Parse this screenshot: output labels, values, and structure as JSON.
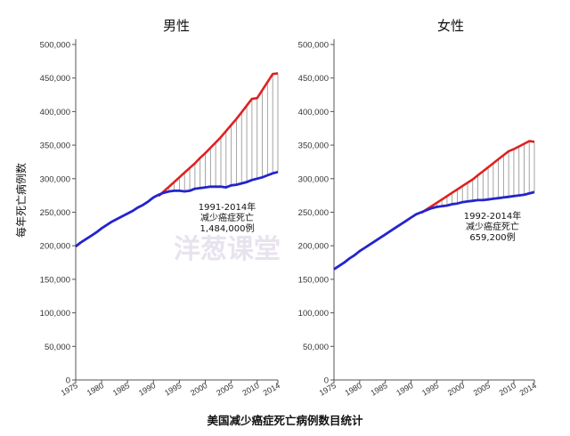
{
  "watermark": "洋葱课堂",
  "chart_data": {
    "type": "line",
    "ylabel": "每年死亡病例数",
    "caption": "美国减少癌症死亡病例数目统计",
    "colors": {
      "expected": "#e02020",
      "actual": "#2424cc",
      "gap_lines": "#9a9a9a",
      "axis": "#555555"
    },
    "panels": [
      {
        "title": "男性",
        "ylim": [
          0,
          500000
        ],
        "yticks": [
          "0",
          "50,000",
          "100,000",
          "150,000",
          "200,000",
          "250,000",
          "300,000",
          "350,000",
          "400,000",
          "450,000",
          "500,000"
        ],
        "ytick_values": [
          0,
          50000,
          100000,
          150000,
          200000,
          250000,
          300000,
          350000,
          400000,
          450000,
          500000
        ],
        "xlim": [
          1975,
          2014
        ],
        "xticks": [
          "1975",
          "1980",
          "1985",
          "1990",
          "1995",
          "2000",
          "2005",
          "2010",
          "2014"
        ],
        "xtick_values": [
          1975,
          1980,
          1985,
          1990,
          1995,
          2000,
          2005,
          2010,
          2014
        ],
        "annotation": [
          "1991-2014年",
          "减少癌症死亡",
          "1,484,000例"
        ],
        "series": [
          {
            "role": "expected",
            "x": [
              1991,
              1992,
              1993,
              1994,
              1995,
              1996,
              1997,
              1998,
              1999,
              2000,
              2001,
              2002,
              2003,
              2004,
              2005,
              2006,
              2007,
              2008,
              2009,
              2010,
              2011,
              2012,
              2013,
              2014
            ],
            "values": [
              274000,
              281000,
              288000,
              295000,
              302000,
              309000,
              316000,
              323000,
              331000,
              338000,
              346000,
              354000,
              362000,
              371000,
              380000,
              389000,
              399000,
              409000,
              419000,
              420000,
              432000,
              444000,
              456000,
              457000
            ]
          },
          {
            "role": "actual",
            "x": [
              1975,
              1976,
              1977,
              1978,
              1979,
              1980,
              1981,
              1982,
              1983,
              1984,
              1985,
              1986,
              1987,
              1988,
              1989,
              1990,
              1991,
              1992,
              1993,
              1994,
              1995,
              1996,
              1997,
              1998,
              1999,
              2000,
              2001,
              2002,
              2003,
              2004,
              2005,
              2006,
              2007,
              2008,
              2009,
              2010,
              2011,
              2012,
              2013,
              2014
            ],
            "values": [
              199000,
              205000,
              210000,
              215000,
              220000,
              226000,
              231000,
              236000,
              240000,
              244000,
              248000,
              252000,
              257000,
              261000,
              266000,
              272000,
              276000,
              279000,
              281000,
              282000,
              282000,
              281000,
              282000,
              285000,
              286000,
              287000,
              288000,
              288000,
              288000,
              287000,
              290000,
              291000,
              293000,
              295000,
              298000,
              300000,
              302000,
              305000,
              308000,
              310000
            ]
          }
        ]
      },
      {
        "title": "女性",
        "ylim": [
          0,
          500000
        ],
        "yticks": [
          "0",
          "50,000",
          "100,000",
          "150,000",
          "200,000",
          "250,000",
          "300,000",
          "350,000",
          "400,000",
          "450,000",
          "500,000"
        ],
        "ytick_values": [
          0,
          50000,
          100000,
          150000,
          200000,
          250000,
          300000,
          350000,
          400000,
          450000,
          500000
        ],
        "xlim": [
          1975,
          2014
        ],
        "xticks": [
          "1975",
          "1980",
          "1985",
          "1990",
          "1995",
          "2000",
          "2005",
          "2010",
          "2014"
        ],
        "xtick_values": [
          1975,
          1980,
          1985,
          1990,
          1995,
          2000,
          2005,
          2010,
          2014
        ],
        "annotation": [
          "1992-2014年",
          "减少癌症死亡",
          "659,200例"
        ],
        "series": [
          {
            "role": "expected",
            "x": [
              1992,
              1993,
              1994,
              1995,
              1996,
              1997,
              1998,
              1999,
              2000,
              2001,
              2002,
              2003,
              2004,
              2005,
              2006,
              2007,
              2008,
              2009,
              2010,
              2011,
              2012,
              2013,
              2014
            ],
            "values": [
              249000,
              254000,
              259000,
              264000,
              269000,
              274000,
              279000,
              284000,
              289000,
              294000,
              299000,
              305000,
              311000,
              317000,
              323000,
              329000,
              335000,
              341000,
              344000,
              348000,
              352000,
              356000,
              355000
            ]
          },
          {
            "role": "actual",
            "x": [
              1975,
              1976,
              1977,
              1978,
              1979,
              1980,
              1981,
              1982,
              1983,
              1984,
              1985,
              1986,
              1987,
              1988,
              1989,
              1990,
              1991,
              1992,
              1993,
              1994,
              1995,
              1996,
              1997,
              1998,
              1999,
              2000,
              2001,
              2002,
              2003,
              2004,
              2005,
              2006,
              2007,
              2008,
              2009,
              2010,
              2011,
              2012,
              2013,
              2014
            ],
            "values": [
              165000,
              170000,
              175000,
              181000,
              186000,
              192000,
              197000,
              202000,
              207000,
              212000,
              217000,
              222000,
              227000,
              232000,
              237000,
              242000,
              247000,
              250000,
              253000,
              256000,
              258000,
              259000,
              260000,
              262000,
              263000,
              265000,
              266000,
              267000,
              268000,
              268000,
              269000,
              270000,
              271000,
              272000,
              273000,
              274000,
              275000,
              276000,
              278000,
              280000
            ]
          }
        ]
      }
    ]
  }
}
